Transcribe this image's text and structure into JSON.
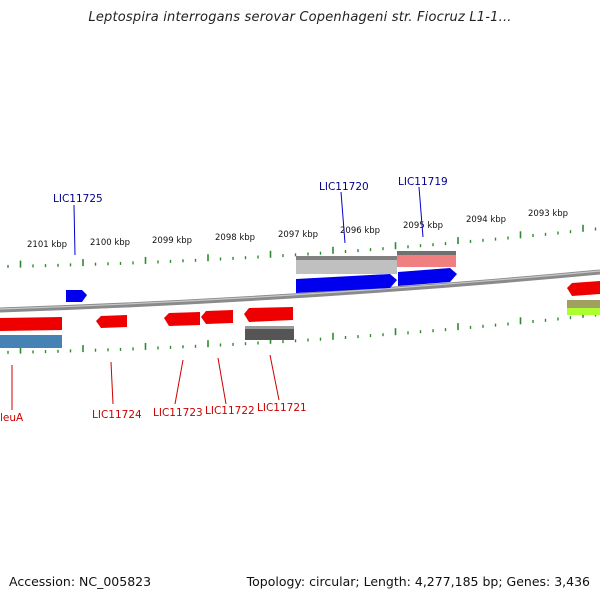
{
  "title": "Leptospira interrogans serovar Copenhageni str. Fiocruz L1-1...",
  "footer": {
    "accession": "Accession: NC_005823",
    "summary": "Topology: circular; Length: 4,277,185 bp; Genes: 3,436"
  },
  "ticks": [
    {
      "label": "2101 kbp"
    },
    {
      "label": "2100 kbp"
    },
    {
      "label": "2099 kbp"
    },
    {
      "label": "2098 kbp"
    },
    {
      "label": "2097 kbp"
    },
    {
      "label": "2096 kbp"
    },
    {
      "label": "2095 kbp"
    },
    {
      "label": "2094 kbp"
    },
    {
      "label": "2093 kbp"
    }
  ],
  "labels_top": [
    {
      "text": "LIC11725",
      "color": "#00008b"
    },
    {
      "text": "LIC11720",
      "color": "#00008b"
    },
    {
      "text": "LIC11719",
      "color": "#00008b"
    }
  ],
  "labels_bottom": [
    {
      "text": "leuA",
      "color": "#cc0000"
    },
    {
      "text": "LIC11724",
      "color": "#cc0000"
    },
    {
      "text": "LIC11723",
      "color": "#cc0000"
    },
    {
      "text": "LIC11722",
      "color": "#cc0000"
    },
    {
      "text": "LIC11721",
      "color": "#cc0000"
    }
  ],
  "colors": {
    "forward_gene": "#0000ee",
    "reverse_gene": "#ee0000",
    "tick": "#2e8b2e",
    "backbone": "#808080"
  }
}
